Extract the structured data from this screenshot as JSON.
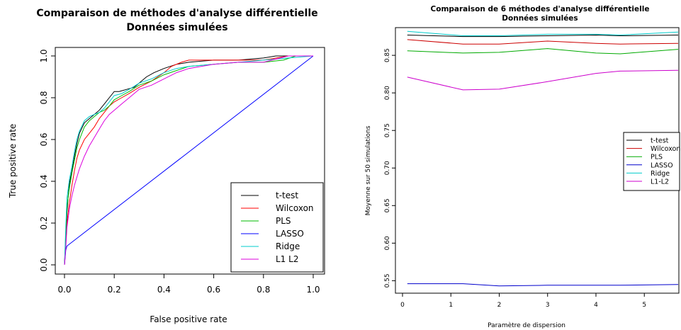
{
  "chart_data": [
    {
      "type": "line",
      "title": "Comparaison de méthodes d'analyse différentielle",
      "subtitle": "Données simulées",
      "xlabel": "False positive rate",
      "ylabel": "True positive rate",
      "xlim": [
        0,
        1
      ],
      "ylim": [
        0,
        1
      ],
      "xticks": [
        0.0,
        0.2,
        0.4,
        0.6,
        0.8,
        1.0
      ],
      "xtick_labels": [
        "0.0",
        "0.2",
        "0.4",
        "0.6",
        "0.8",
        "1.0"
      ],
      "yticks": [
        0.0,
        0.2,
        0.4,
        0.6,
        0.8,
        1.0
      ],
      "ytick_labels": [
        "0.0",
        "0.2",
        "0.4",
        "0.6",
        "0.8",
        "1.0"
      ],
      "legend_position": "bottom-right",
      "series": [
        {
          "name": "t-test",
          "color": "#000000",
          "x": [
            0,
            0.005,
            0.01,
            0.015,
            0.02,
            0.03,
            0.04,
            0.05,
            0.06,
            0.08,
            0.1,
            0.12,
            0.14,
            0.16,
            0.18,
            0.2,
            0.22,
            0.25,
            0.28,
            0.3,
            0.33,
            0.36,
            0.4,
            0.45,
            0.5,
            0.6,
            0.7,
            0.8,
            0.85,
            0.9,
            1.0
          ],
          "y": [
            0,
            0.12,
            0.25,
            0.33,
            0.39,
            0.45,
            0.52,
            0.58,
            0.63,
            0.68,
            0.7,
            0.72,
            0.74,
            0.77,
            0.8,
            0.83,
            0.83,
            0.84,
            0.85,
            0.87,
            0.9,
            0.92,
            0.94,
            0.96,
            0.97,
            0.98,
            0.98,
            0.99,
            1.0,
            1.0,
            1.0
          ]
        },
        {
          "name": "Wilcoxon",
          "color": "#ff0000",
          "x": [
            0,
            0.005,
            0.01,
            0.02,
            0.03,
            0.04,
            0.05,
            0.06,
            0.08,
            0.1,
            0.12,
            0.14,
            0.16,
            0.18,
            0.2,
            0.23,
            0.26,
            0.3,
            0.35,
            0.4,
            0.43,
            0.47,
            0.5,
            0.6,
            0.7,
            0.8,
            0.9,
            1.0
          ],
          "y": [
            0,
            0.1,
            0.2,
            0.3,
            0.38,
            0.45,
            0.51,
            0.55,
            0.6,
            0.63,
            0.66,
            0.7,
            0.73,
            0.76,
            0.78,
            0.8,
            0.82,
            0.85,
            0.88,
            0.92,
            0.95,
            0.97,
            0.98,
            0.98,
            0.98,
            0.98,
            1.0,
            1.0
          ]
        },
        {
          "name": "PLS",
          "color": "#00bb00",
          "x": [
            0,
            0.005,
            0.01,
            0.02,
            0.03,
            0.04,
            0.05,
            0.06,
            0.08,
            0.1,
            0.12,
            0.14,
            0.16,
            0.18,
            0.2,
            0.23,
            0.26,
            0.3,
            0.35,
            0.4,
            0.45,
            0.5,
            0.6,
            0.7,
            0.8,
            0.88,
            0.93,
            1.0
          ],
          "y": [
            0,
            0.15,
            0.28,
            0.37,
            0.44,
            0.5,
            0.56,
            0.6,
            0.66,
            0.69,
            0.71,
            0.73,
            0.74,
            0.76,
            0.79,
            0.81,
            0.83,
            0.86,
            0.88,
            0.91,
            0.93,
            0.95,
            0.96,
            0.97,
            0.97,
            0.98,
            1.0,
            1.0
          ]
        },
        {
          "name": "LASSO",
          "color": "#0000ff",
          "x": [
            0,
            0.005,
            0.01,
            1.0
          ],
          "y": [
            0,
            0.07,
            0.09,
            1.0
          ]
        },
        {
          "name": "Ridge",
          "color": "#00cccc",
          "x": [
            0,
            0.005,
            0.01,
            0.02,
            0.03,
            0.04,
            0.05,
            0.06,
            0.08,
            0.1,
            0.12,
            0.14,
            0.16,
            0.18,
            0.2,
            0.23,
            0.26,
            0.3,
            0.35,
            0.4,
            0.45,
            0.5,
            0.6,
            0.7,
            0.8,
            0.9,
            1.0
          ],
          "y": [
            0,
            0.18,
            0.32,
            0.41,
            0.47,
            0.54,
            0.6,
            0.64,
            0.69,
            0.71,
            0.72,
            0.73,
            0.75,
            0.78,
            0.81,
            0.82,
            0.84,
            0.87,
            0.89,
            0.92,
            0.94,
            0.95,
            0.96,
            0.97,
            0.98,
            0.99,
            1.0
          ]
        },
        {
          "name": "L1 L2",
          "color": "#dd00dd",
          "x": [
            0,
            0.005,
            0.01,
            0.02,
            0.03,
            0.04,
            0.05,
            0.06,
            0.08,
            0.1,
            0.12,
            0.14,
            0.16,
            0.18,
            0.2,
            0.23,
            0.26,
            0.3,
            0.35,
            0.4,
            0.45,
            0.5,
            0.6,
            0.7,
            0.8,
            0.9,
            1.0
          ],
          "y": [
            0,
            0.08,
            0.18,
            0.27,
            0.33,
            0.38,
            0.42,
            0.46,
            0.52,
            0.57,
            0.61,
            0.65,
            0.69,
            0.72,
            0.74,
            0.77,
            0.8,
            0.84,
            0.86,
            0.89,
            0.92,
            0.94,
            0.96,
            0.97,
            0.97,
            1.0,
            1.0
          ]
        }
      ]
    },
    {
      "type": "line",
      "title": "Comparaison de 6 méthodes d'analyse différentielle",
      "subtitle": "Données simulées",
      "xlabel": "Paramètre de dispersion",
      "ylabel": "Moyenne sur 50 simulations",
      "xlim": [
        0,
        5.7
      ],
      "ylim": [
        0.54,
        0.885
      ],
      "xticks": [
        0,
        1,
        2,
        3,
        4,
        5
      ],
      "xtick_labels": [
        "0",
        "1",
        "2",
        "3",
        "4",
        "5"
      ],
      "yticks": [
        0.55,
        0.6,
        0.65,
        0.7,
        0.75,
        0.8,
        0.85
      ],
      "ytick_labels": [
        "0.55",
        "0.60",
        "0.65",
        "0.70",
        "0.75",
        "0.80",
        "0.85"
      ],
      "legend_position": "right",
      "series": [
        {
          "name": "t-test",
          "color": "#000000",
          "x": [
            0.1,
            1.25,
            2.0,
            3.0,
            4.0,
            4.5,
            5.7
          ],
          "y": [
            0.877,
            0.875,
            0.875,
            0.876,
            0.877,
            0.876,
            0.877
          ]
        },
        {
          "name": "Wilcoxon",
          "color": "#cc0000",
          "x": [
            0.1,
            1.25,
            2.0,
            3.0,
            4.0,
            4.5,
            5.7
          ],
          "y": [
            0.871,
            0.865,
            0.865,
            0.869,
            0.866,
            0.865,
            0.866
          ]
        },
        {
          "name": "PLS",
          "color": "#00aa00",
          "x": [
            0.1,
            1.25,
            2.0,
            3.0,
            4.0,
            4.5,
            5.7
          ],
          "y": [
            0.856,
            0.853,
            0.854,
            0.859,
            0.853,
            0.852,
            0.858
          ]
        },
        {
          "name": "LASSO",
          "color": "#0000cc",
          "x": [
            0.1,
            1.25,
            2.0,
            3.0,
            4.0,
            4.5,
            5.7
          ],
          "y": [
            0.546,
            0.546,
            0.543,
            0.544,
            0.544,
            0.544,
            0.545
          ]
        },
        {
          "name": "Ridge",
          "color": "#00cccc",
          "x": [
            0.1,
            1.25,
            2.0,
            3.0,
            4.0,
            4.5,
            5.7
          ],
          "y": [
            0.882,
            0.876,
            0.876,
            0.878,
            0.878,
            0.877,
            0.881
          ]
        },
        {
          "name": "L1-L2",
          "color": "#cc00cc",
          "x": [
            0.1,
            1.25,
            2.0,
            3.0,
            4.0,
            4.5,
            5.7
          ],
          "y": [
            0.821,
            0.804,
            0.805,
            0.815,
            0.826,
            0.829,
            0.83
          ]
        }
      ]
    }
  ]
}
